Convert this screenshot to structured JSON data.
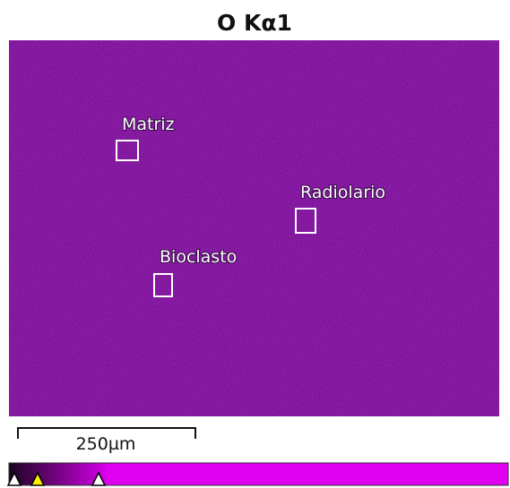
{
  "title": "O Kα1",
  "regions": [
    {
      "label": "Matriz"
    },
    {
      "label": "Radiolario"
    },
    {
      "label": "Bioclasto"
    }
  ],
  "scale_bar": {
    "label": "250µm"
  }
}
